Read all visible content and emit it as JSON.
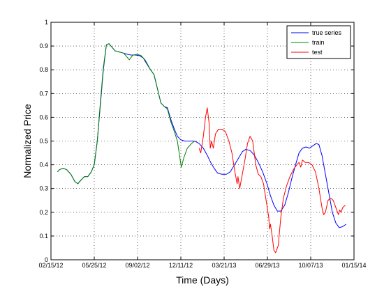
{
  "chart_data": {
    "type": "line",
    "xlabel": "Time (Days)",
    "ylabel": "Normalized Price",
    "xlim": [
      "2012-02-15",
      "2014-01-15"
    ],
    "ylim": [
      0,
      1
    ],
    "grid": true,
    "legend_position": "top-right",
    "x_ticks": [
      "2012-02-15",
      "2012-05-25",
      "2012-09-02",
      "2012-12-11",
      "2013-03-21",
      "2013-06-29",
      "2013-10-07",
      "2014-01-15"
    ],
    "x_tick_labels": [
      "02/15/12",
      "05/25/12",
      "09/02/12",
      "12/11/12",
      "03/21/13",
      "06/29/13",
      "10/07/13",
      "01/15/14"
    ],
    "y_ticks": [
      0,
      0.1,
      0.2,
      0.3,
      0.4,
      0.5,
      0.6,
      0.7,
      0.8,
      0.9,
      1
    ],
    "y_tick_labels": [
      "0",
      "0.1",
      "0.2",
      "0.3",
      "0.4",
      "0.5",
      "0.6",
      "0.7",
      "0.8",
      "0.9",
      "1"
    ],
    "series": [
      {
        "name": "true series",
        "color": "#0000ff",
        "points": [
          [
            "2012-03-01",
            0.37
          ],
          [
            "2012-03-06",
            0.38
          ],
          [
            "2012-03-14",
            0.385
          ],
          [
            "2012-03-22",
            0.38
          ],
          [
            "2012-04-01",
            0.36
          ],
          [
            "2012-04-10",
            0.33
          ],
          [
            "2012-04-17",
            0.32
          ],
          [
            "2012-04-24",
            0.335
          ],
          [
            "2012-05-02",
            0.35
          ],
          [
            "2012-05-10",
            0.35
          ],
          [
            "2012-05-18",
            0.37
          ],
          [
            "2012-05-25",
            0.4
          ],
          [
            "2012-06-01",
            0.5
          ],
          [
            "2012-06-08",
            0.65
          ],
          [
            "2012-06-15",
            0.8
          ],
          [
            "2012-06-22",
            0.905
          ],
          [
            "2012-06-28",
            0.91
          ],
          [
            "2012-07-05",
            0.895
          ],
          [
            "2012-07-12",
            0.88
          ],
          [
            "2012-07-22",
            0.875
          ],
          [
            "2012-08-01",
            0.87
          ],
          [
            "2012-08-10",
            0.865
          ],
          [
            "2012-08-18",
            0.862
          ],
          [
            "2012-08-28",
            0.862
          ],
          [
            "2012-09-06",
            0.86
          ],
          [
            "2012-09-15",
            0.85
          ],
          [
            "2012-09-25",
            0.82
          ],
          [
            "2012-10-02",
            0.8
          ],
          [
            "2012-10-10",
            0.78
          ],
          [
            "2012-10-18",
            0.72
          ],
          [
            "2012-10-26",
            0.66
          ],
          [
            "2012-11-03",
            0.645
          ],
          [
            "2012-11-10",
            0.64
          ],
          [
            "2012-11-18",
            0.59
          ],
          [
            "2012-11-26",
            0.55
          ],
          [
            "2012-12-03",
            0.52
          ],
          [
            "2012-12-11",
            0.505
          ],
          [
            "2012-12-20",
            0.5
          ],
          [
            "2013-01-01",
            0.5
          ],
          [
            "2013-01-12",
            0.5
          ],
          [
            "2013-01-22",
            0.49
          ],
          [
            "2013-02-01",
            0.47
          ],
          [
            "2013-02-10",
            0.44
          ],
          [
            "2013-02-18",
            0.41
          ],
          [
            "2013-02-26",
            0.385
          ],
          [
            "2013-03-06",
            0.365
          ],
          [
            "2013-03-16",
            0.36
          ],
          [
            "2013-03-26",
            0.36
          ],
          [
            "2013-04-04",
            0.37
          ],
          [
            "2013-04-14",
            0.4
          ],
          [
            "2013-04-24",
            0.43
          ],
          [
            "2013-05-02",
            0.455
          ],
          [
            "2013-05-10",
            0.465
          ],
          [
            "2013-05-20",
            0.46
          ],
          [
            "2013-05-30",
            0.44
          ],
          [
            "2013-06-08",
            0.41
          ],
          [
            "2013-06-18",
            0.37
          ],
          [
            "2013-06-28",
            0.32
          ],
          [
            "2013-07-06",
            0.27
          ],
          [
            "2013-07-14",
            0.23
          ],
          [
            "2013-07-22",
            0.205
          ],
          [
            "2013-07-30",
            0.205
          ],
          [
            "2013-08-08",
            0.23
          ],
          [
            "2013-08-16",
            0.28
          ],
          [
            "2013-08-24",
            0.34
          ],
          [
            "2013-09-02",
            0.4
          ],
          [
            "2013-09-10",
            0.45
          ],
          [
            "2013-09-18",
            0.47
          ],
          [
            "2013-09-26",
            0.475
          ],
          [
            "2013-10-04",
            0.47
          ],
          [
            "2013-10-12",
            0.48
          ],
          [
            "2013-10-20",
            0.49
          ],
          [
            "2013-10-26",
            0.485
          ],
          [
            "2013-11-02",
            0.44
          ],
          [
            "2013-11-10",
            0.36
          ],
          [
            "2013-11-18",
            0.28
          ],
          [
            "2013-11-26",
            0.2
          ],
          [
            "2013-12-04",
            0.155
          ],
          [
            "2013-12-12",
            0.135
          ],
          [
            "2013-12-20",
            0.14
          ],
          [
            "2013-12-28",
            0.15
          ]
        ]
      },
      {
        "name": "train",
        "color": "#008000",
        "points": [
          [
            "2012-03-01",
            0.37
          ],
          [
            "2012-03-06",
            0.38
          ],
          [
            "2012-03-14",
            0.385
          ],
          [
            "2012-03-22",
            0.38
          ],
          [
            "2012-04-01",
            0.36
          ],
          [
            "2012-04-10",
            0.33
          ],
          [
            "2012-04-17",
            0.32
          ],
          [
            "2012-04-24",
            0.335
          ],
          [
            "2012-05-02",
            0.35
          ],
          [
            "2012-05-10",
            0.35
          ],
          [
            "2012-05-18",
            0.37
          ],
          [
            "2012-05-25",
            0.4
          ],
          [
            "2012-06-01",
            0.5
          ],
          [
            "2012-06-08",
            0.66
          ],
          [
            "2012-06-15",
            0.81
          ],
          [
            "2012-06-22",
            0.905
          ],
          [
            "2012-06-28",
            0.91
          ],
          [
            "2012-07-05",
            0.895
          ],
          [
            "2012-07-12",
            0.88
          ],
          [
            "2012-07-22",
            0.875
          ],
          [
            "2012-08-01",
            0.87
          ],
          [
            "2012-08-08",
            0.855
          ],
          [
            "2012-08-14",
            0.842
          ],
          [
            "2012-08-22",
            0.862
          ],
          [
            "2012-09-01",
            0.865
          ],
          [
            "2012-09-10",
            0.86
          ],
          [
            "2012-09-20",
            0.84
          ],
          [
            "2012-10-02",
            0.8
          ],
          [
            "2012-10-10",
            0.78
          ],
          [
            "2012-10-18",
            0.72
          ],
          [
            "2012-10-26",
            0.66
          ],
          [
            "2012-11-03",
            0.645
          ],
          [
            "2012-11-10",
            0.635
          ],
          [
            "2012-11-18",
            0.58
          ],
          [
            "2012-11-26",
            0.54
          ],
          [
            "2012-12-03",
            0.5
          ],
          [
            "2012-12-08",
            0.44
          ],
          [
            "2012-12-12",
            0.39
          ],
          [
            "2012-12-18",
            0.43
          ],
          [
            "2012-12-26",
            0.47
          ],
          [
            "2013-01-05",
            0.49
          ],
          [
            "2013-01-12",
            0.5
          ]
        ]
      },
      {
        "name": "test",
        "color": "#ff0000",
        "points": [
          [
            "2013-01-22",
            0.47
          ],
          [
            "2013-01-26",
            0.45
          ],
          [
            "2013-02-01",
            0.52
          ],
          [
            "2013-02-06",
            0.6
          ],
          [
            "2013-02-10",
            0.64
          ],
          [
            "2013-02-14",
            0.58
          ],
          [
            "2013-02-17",
            0.47
          ],
          [
            "2013-02-20",
            0.5
          ],
          [
            "2013-02-24",
            0.47
          ],
          [
            "2013-03-01",
            0.53
          ],
          [
            "2013-03-08",
            0.55
          ],
          [
            "2013-03-16",
            0.55
          ],
          [
            "2013-03-24",
            0.54
          ],
          [
            "2013-04-01",
            0.5
          ],
          [
            "2013-04-08",
            0.45
          ],
          [
            "2013-04-14",
            0.38
          ],
          [
            "2013-04-18",
            0.34
          ],
          [
            "2013-04-20",
            0.32
          ],
          [
            "2013-04-22",
            0.35
          ],
          [
            "2013-04-26",
            0.3
          ],
          [
            "2013-05-02",
            0.36
          ],
          [
            "2013-05-08",
            0.42
          ],
          [
            "2013-05-14",
            0.49
          ],
          [
            "2013-05-20",
            0.52
          ],
          [
            "2013-05-26",
            0.5
          ],
          [
            "2013-06-02",
            0.4
          ],
          [
            "2013-06-08",
            0.36
          ],
          [
            "2013-06-14",
            0.35
          ],
          [
            "2013-06-20",
            0.32
          ],
          [
            "2013-06-26",
            0.25
          ],
          [
            "2013-07-02",
            0.18
          ],
          [
            "2013-07-04",
            0.13
          ],
          [
            "2013-07-06",
            0.15
          ],
          [
            "2013-07-10",
            0.1
          ],
          [
            "2013-07-14",
            0.04
          ],
          [
            "2013-07-18",
            0.03
          ],
          [
            "2013-07-24",
            0.06
          ],
          [
            "2013-07-30",
            0.18
          ],
          [
            "2013-08-05",
            0.26
          ],
          [
            "2013-08-12",
            0.31
          ],
          [
            "2013-08-20",
            0.35
          ],
          [
            "2013-08-28",
            0.38
          ],
          [
            "2013-09-05",
            0.4
          ],
          [
            "2013-09-10",
            0.41
          ],
          [
            "2013-09-14",
            0.39
          ],
          [
            "2013-09-18",
            0.42
          ],
          [
            "2013-09-24",
            0.41
          ],
          [
            "2013-10-02",
            0.41
          ],
          [
            "2013-10-10",
            0.4
          ],
          [
            "2013-10-18",
            0.37
          ],
          [
            "2013-10-26",
            0.3
          ],
          [
            "2013-11-02",
            0.22
          ],
          [
            "2013-11-06",
            0.19
          ],
          [
            "2013-11-10",
            0.2
          ],
          [
            "2013-11-16",
            0.25
          ],
          [
            "2013-11-22",
            0.26
          ],
          [
            "2013-11-28",
            0.25
          ],
          [
            "2013-12-04",
            0.22
          ],
          [
            "2013-12-10",
            0.19
          ],
          [
            "2013-12-13",
            0.21
          ],
          [
            "2013-12-16",
            0.2
          ],
          [
            "2013-12-20",
            0.22
          ],
          [
            "2013-12-26",
            0.23
          ]
        ]
      }
    ]
  }
}
